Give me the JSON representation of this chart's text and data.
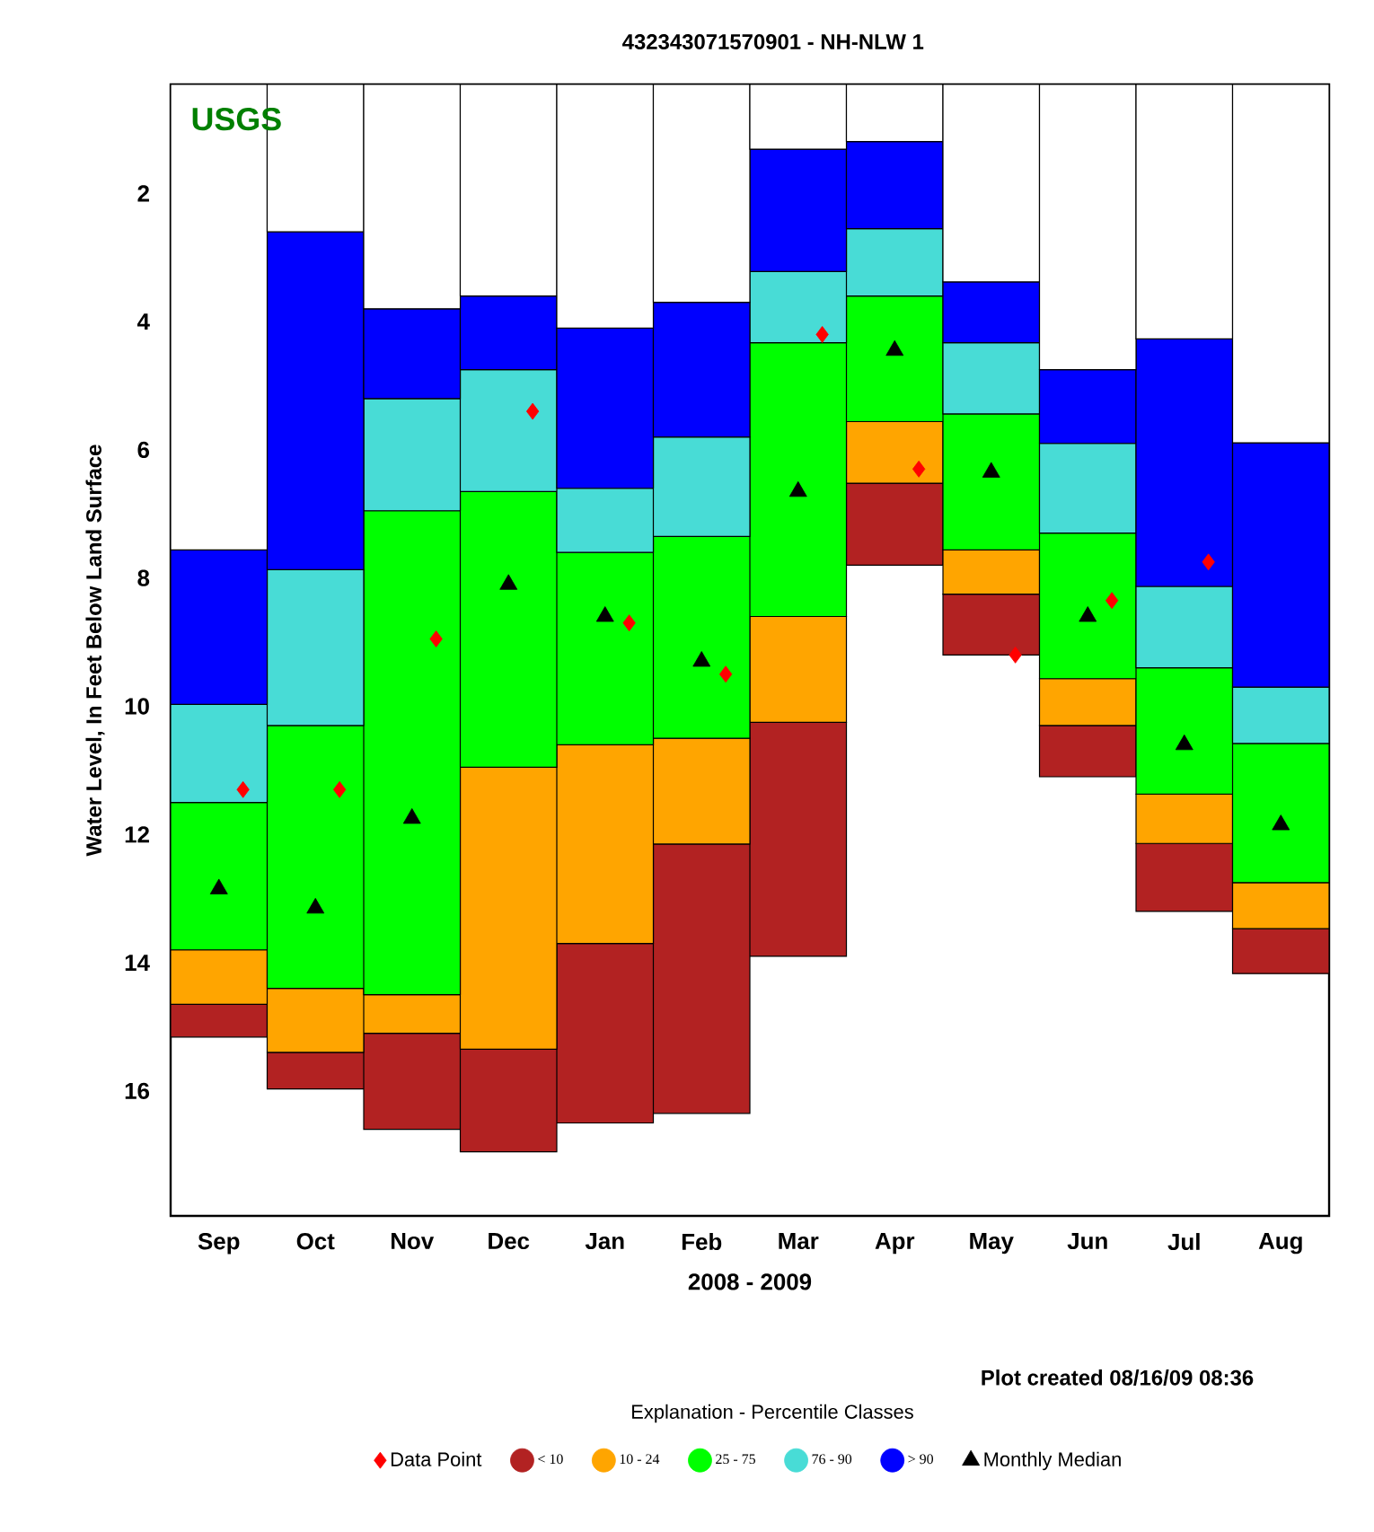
{
  "chart_data": {
    "type": "bar",
    "stacked": true,
    "title": "432343071570901 - NH-NLW    1",
    "xlabel": "2008 - 2009",
    "ylabel": "Water Level, In Feet Below Land Surface",
    "legend_title": "Explanation - Percentile Classes",
    "legend": "bottom",
    "annotations": [
      "USGS",
      "Plot created 08/16/09 08:36"
    ],
    "categories": [
      "Sep",
      "Oct",
      "Nov",
      "Dec",
      "Jan",
      "Feb",
      "Mar",
      "Apr",
      "May",
      "Jun",
      "Jul",
      "Aug"
    ],
    "ylim": [
      17.95,
      0.3
    ],
    "yticks": [
      2,
      4,
      6,
      8,
      10,
      12,
      14,
      16
    ],
    "series": [
      {
        "color": "#ffffff",
        "values": [
          7.56,
          2.6,
          3.8,
          3.6,
          4.1,
          3.7,
          1.31,
          1.19,
          3.38,
          4.75,
          4.27,
          5.89
        ]
      },
      {
        "name": "> 90",
        "color": "#0000ff",
        "values": [
          2.41,
          5.27,
          1.4,
          1.15,
          2.5,
          2.1,
          1.91,
          1.36,
          0.95,
          1.15,
          3.86,
          3.81
        ]
      },
      {
        "name": "76 - 90",
        "color": "#48dcd6",
        "values": [
          1.53,
          2.43,
          1.75,
          1.9,
          1.0,
          1.55,
          1.11,
          1.05,
          1.11,
          1.4,
          1.27,
          0.88
        ]
      },
      {
        "name": "25 - 75",
        "color": "#00ff00",
        "values": [
          2.3,
          4.1,
          7.55,
          4.3,
          3.0,
          3.15,
          4.27,
          1.96,
          2.12,
          2.27,
          1.97,
          2.17
        ]
      },
      {
        "name": "10 - 24",
        "color": "#ffa500",
        "values": [
          0.85,
          1.0,
          0.6,
          4.4,
          3.1,
          1.65,
          1.65,
          0.96,
          0.69,
          0.73,
          0.77,
          0.72
        ]
      },
      {
        "name": "< 10",
        "color": "#b22222",
        "values": [
          0.51,
          0.57,
          1.5,
          1.6,
          2.8,
          4.2,
          3.65,
          1.28,
          0.95,
          0.8,
          1.06,
          0.7
        ]
      },
      {
        "name": "Data Point",
        "type": "scatter",
        "marker": "diamond",
        "color": "#ff0000",
        "values": [
          11.3,
          11.3,
          8.95,
          5.4,
          8.7,
          9.5,
          4.2,
          6.3,
          9.2,
          8.35,
          7.75,
          null
        ]
      },
      {
        "name": "Monthly Median",
        "type": "scatter",
        "marker": "triangle",
        "color": "#000000",
        "values": [
          12.85,
          13.15,
          11.75,
          8.1,
          8.6,
          9.3,
          6.65,
          4.45,
          6.35,
          8.6,
          10.6,
          11.85
        ]
      }
    ]
  }
}
